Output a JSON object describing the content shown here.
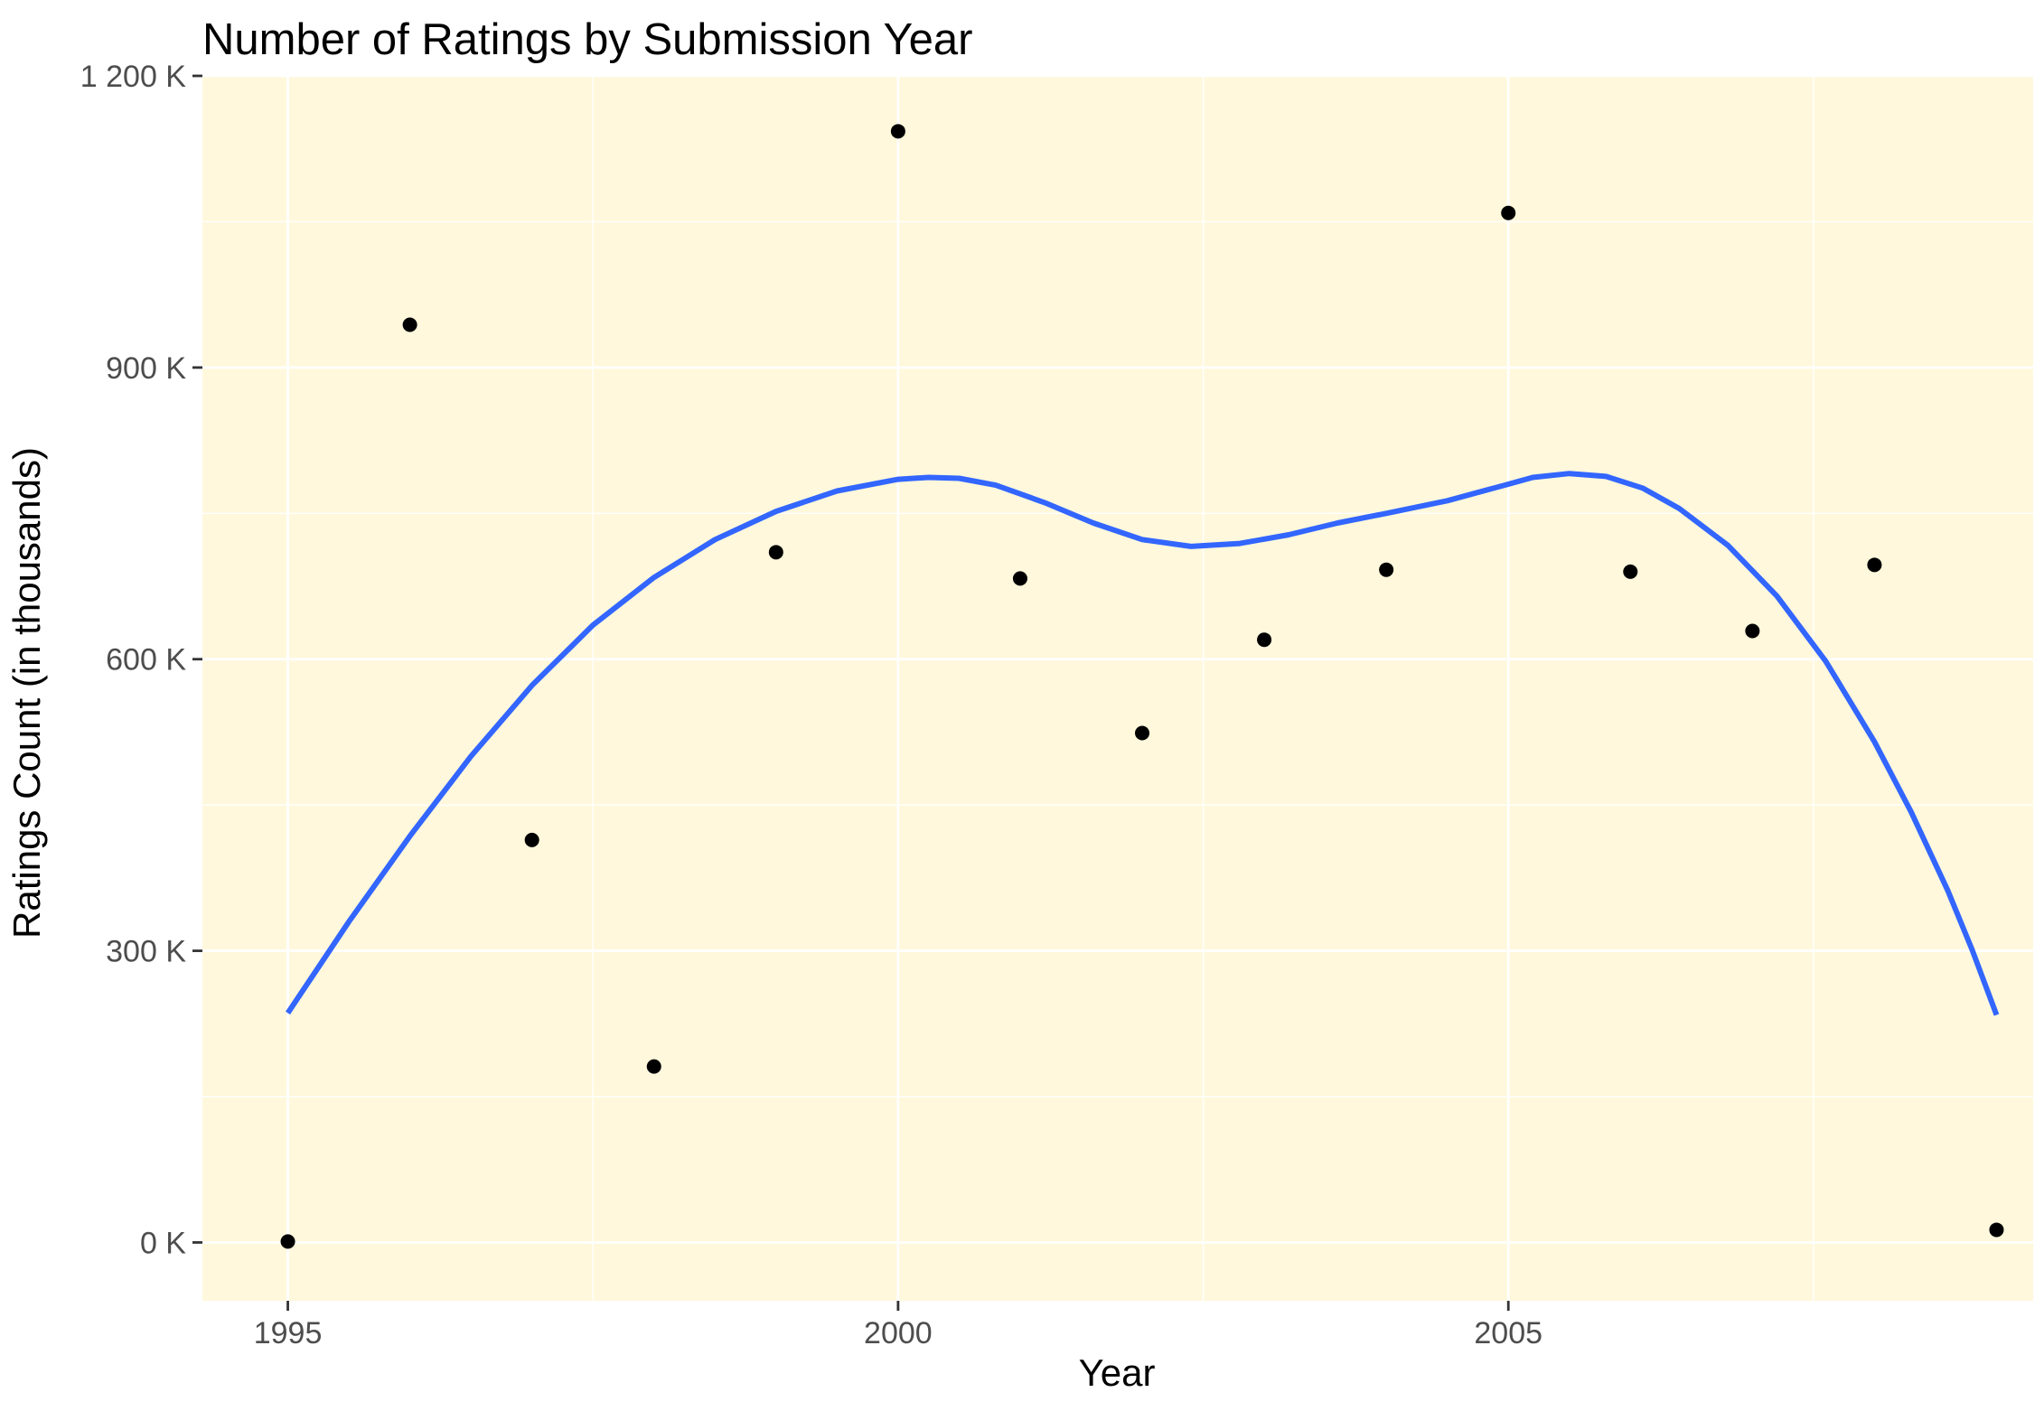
{
  "chart_data": {
    "type": "scatter",
    "title": "Number of Ratings by Submission Year",
    "xlabel": "Year",
    "ylabel": "Ratings Count (in thousands)",
    "xlim": [
      1994.3,
      2009.3
    ],
    "ylim": [
      -60000,
      1200000
    ],
    "x_ticks": [
      1995,
      2000,
      2005
    ],
    "x_tick_labels": [
      "1995",
      "2000",
      "2005"
    ],
    "x_minor_ticks": [
      1997.5,
      2002.5,
      2007.5
    ],
    "y_ticks": [
      0,
      300000,
      600000,
      900000,
      1200000
    ],
    "y_tick_labels": [
      "0 K",
      "300 K",
      "600 K",
      "900 K",
      "1 200 K"
    ],
    "y_minor_ticks": [
      150000,
      450000,
      750000,
      1050000
    ],
    "grid": true,
    "panel_background": "#fff8dc",
    "grid_color": "#ffffff",
    "point_color": "#000000",
    "series": [
      {
        "values": [
          [
            1995,
            1000
          ],
          [
            1996,
            944000
          ],
          [
            1997,
            414000
          ],
          [
            1998,
            181000
          ],
          [
            1999,
            710000
          ],
          [
            2000,
            1143000
          ],
          [
            2001,
            683000
          ],
          [
            2002,
            524000
          ],
          [
            2003,
            620000
          ],
          [
            2004,
            692000
          ],
          [
            2005,
            1059000
          ],
          [
            2006,
            690000
          ],
          [
            2007,
            629000
          ],
          [
            2008,
            697000
          ],
          [
            2009,
            13000
          ]
        ]
      }
    ],
    "smooth_line": {
      "color": "#3366ff",
      "values": [
        [
          1995.0,
          236000
        ],
        [
          1995.5,
          330000
        ],
        [
          1996.0,
          418000
        ],
        [
          1996.5,
          500000
        ],
        [
          1997.0,
          573000
        ],
        [
          1997.5,
          635000
        ],
        [
          1998.0,
          684000
        ],
        [
          1998.5,
          723000
        ],
        [
          1999.0,
          752000
        ],
        [
          1999.5,
          773000
        ],
        [
          2000.0,
          785000
        ],
        [
          2000.25,
          787000
        ],
        [
          2000.5,
          786000
        ],
        [
          2000.8,
          779000
        ],
        [
          2001.2,
          761000
        ],
        [
          2001.6,
          740000
        ],
        [
          2002.0,
          723000
        ],
        [
          2002.4,
          716000
        ],
        [
          2002.8,
          719000
        ],
        [
          2003.2,
          728000
        ],
        [
          2003.6,
          740000
        ],
        [
          2004.0,
          750000
        ],
        [
          2004.5,
          763000
        ],
        [
          2005.0,
          780000
        ],
        [
          2005.2,
          787000
        ],
        [
          2005.5,
          791000
        ],
        [
          2005.8,
          788000
        ],
        [
          2006.1,
          776000
        ],
        [
          2006.4,
          755000
        ],
        [
          2006.8,
          717000
        ],
        [
          2007.2,
          665000
        ],
        [
          2007.6,
          598000
        ],
        [
          2008.0,
          515000
        ],
        [
          2008.3,
          443000
        ],
        [
          2008.6,
          362000
        ],
        [
          2008.8,
          301000
        ],
        [
          2009.0,
          234000
        ]
      ]
    }
  }
}
